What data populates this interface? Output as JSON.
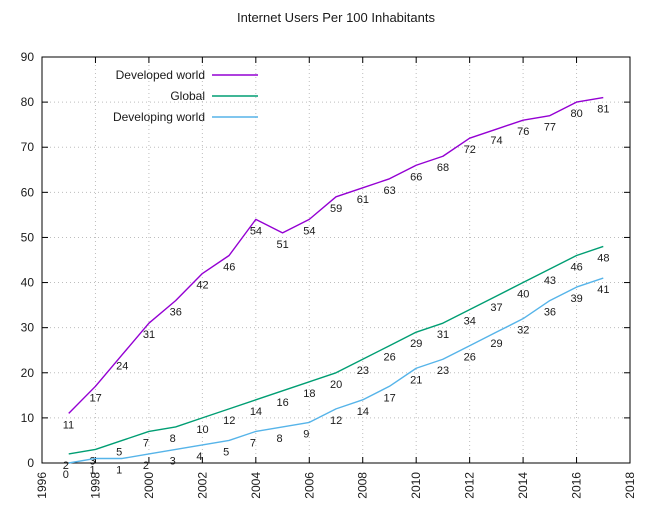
{
  "title": "Internet Users Per 100 Inhabitants",
  "chart_data": {
    "type": "line",
    "title": "Internet Users Per 100 Inhabitants",
    "x": [
      1997,
      1998,
      1999,
      2000,
      2001,
      2002,
      2003,
      2004,
      2005,
      2006,
      2007,
      2008,
      2009,
      2010,
      2011,
      2012,
      2013,
      2014,
      2015,
      2016,
      2017
    ],
    "series": [
      {
        "name": "Developed world",
        "color": "#9400d3",
        "values": [
          11,
          17,
          24,
          31,
          36,
          42,
          46,
          54,
          51,
          54,
          59,
          61,
          63,
          66,
          68,
          72,
          74,
          76,
          77,
          80,
          81
        ]
      },
      {
        "name": "Global",
        "color": "#009e73",
        "values": [
          2,
          3,
          5,
          7,
          8,
          10,
          12,
          14,
          16,
          18,
          20,
          23,
          26,
          29,
          31,
          34,
          37,
          40,
          43,
          46,
          48
        ]
      },
      {
        "name": "Developing world",
        "color": "#56b4e9",
        "values": [
          0,
          1,
          1,
          2,
          3,
          4,
          5,
          7,
          8,
          9,
          12,
          14,
          17,
          21,
          23,
          26,
          29,
          32,
          36,
          39,
          41
        ]
      }
    ],
    "xlim": [
      1996,
      2018
    ],
    "ylim": [
      0,
      90
    ],
    "xticks": [
      1996,
      1998,
      2000,
      2002,
      2004,
      2006,
      2008,
      2010,
      2012,
      2014,
      2016,
      2018
    ],
    "yticks": [
      0,
      10,
      20,
      30,
      40,
      50,
      60,
      70,
      80,
      90
    ],
    "grid": true,
    "legend_position": "top-left",
    "show_point_labels": true
  }
}
